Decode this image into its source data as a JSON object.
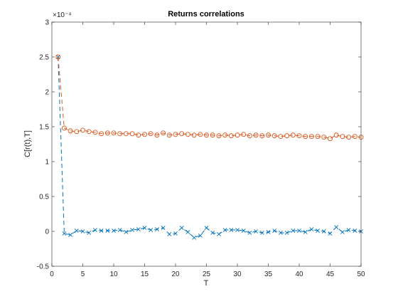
{
  "chart_data": {
    "type": "line",
    "title": "Returns correlations",
    "xlabel": "T",
    "ylabel": "C[r(t),T]",
    "xlim": [
      0,
      50
    ],
    "ylim": [
      -0.5,
      3
    ],
    "y_exponent_label": "×10⁻⁴",
    "xticks": [
      0,
      5,
      10,
      15,
      20,
      25,
      30,
      35,
      40,
      45,
      50
    ],
    "xtick_labels": [
      "0",
      "5",
      "10",
      "15",
      "20",
      "25",
      "30",
      "35",
      "40",
      "45",
      "50"
    ],
    "yticks": [
      -0.5,
      0,
      0.5,
      1,
      1.5,
      2,
      2.5,
      3
    ],
    "ytick_labels": [
      "-0.5",
      "0",
      "0.5",
      "1",
      "1.5",
      "2",
      "2.5",
      "3"
    ],
    "grid": false,
    "x": [
      1,
      2,
      3,
      4,
      5,
      6,
      7,
      8,
      9,
      10,
      11,
      12,
      13,
      14,
      15,
      16,
      17,
      18,
      19,
      20,
      21,
      22,
      23,
      24,
      25,
      26,
      27,
      28,
      29,
      30,
      31,
      32,
      33,
      34,
      35,
      36,
      37,
      38,
      39,
      40,
      41,
      42,
      43,
      44,
      45,
      46,
      47,
      48,
      49,
      50
    ],
    "series": [
      {
        "marker": "x",
        "color": "#0072BD",
        "values": [
          2.5,
          -0.03,
          -0.05,
          0.01,
          0,
          -0.02,
          0.02,
          0.01,
          0.01,
          0.01,
          0.02,
          -0.01,
          0.02,
          0.03,
          0.05,
          0.02,
          0.03,
          0.05,
          -0.04,
          -0.03,
          0.05,
          -0.01,
          -0.09,
          -0.06,
          0.05,
          -0.02,
          -0.04,
          0.02,
          0.02,
          0.02,
          0.01,
          -0.02,
          0,
          -0.02,
          -0.01,
          0.01,
          -0.02,
          -0.02,
          0.01,
          0.01,
          -0.01,
          0.03,
          0.01,
          0,
          -0.03,
          0.06,
          -0.01,
          0.02,
          0.01,
          0
        ]
      },
      {
        "marker": "o",
        "color": "#D95319",
        "values": [
          2.5,
          1.48,
          1.44,
          1.43,
          1.45,
          1.43,
          1.42,
          1.4,
          1.41,
          1.41,
          1.4,
          1.4,
          1.4,
          1.38,
          1.39,
          1.4,
          1.38,
          1.41,
          1.38,
          1.39,
          1.4,
          1.39,
          1.38,
          1.39,
          1.38,
          1.38,
          1.37,
          1.38,
          1.37,
          1.38,
          1.39,
          1.37,
          1.38,
          1.37,
          1.38,
          1.37,
          1.36,
          1.37,
          1.38,
          1.37,
          1.36,
          1.36,
          1.36,
          1.35,
          1.33,
          1.38,
          1.36,
          1.35,
          1.36,
          1.35
        ]
      }
    ]
  }
}
